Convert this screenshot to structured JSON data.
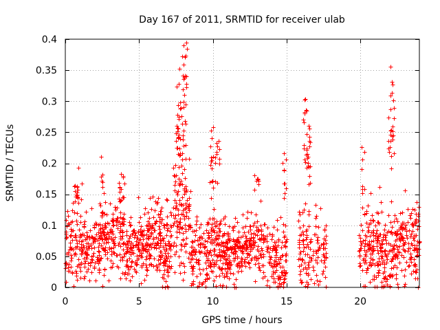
{
  "chart_data": {
    "type": "scatter",
    "title": "Day 167 of 2011, SRMTID for receiver ulab",
    "xlabel": "GPS time / hours",
    "ylabel": "SRMTID / TECUs",
    "xlim": [
      0,
      24
    ],
    "ylim": [
      0,
      0.4
    ],
    "xticks": [
      0,
      5,
      10,
      15,
      20
    ],
    "xtick_labels": [
      "0",
      "5",
      "10",
      "15",
      "20"
    ],
    "yticks": [
      0,
      0.05,
      0.1,
      0.15,
      0.2,
      0.25,
      0.3,
      0.35,
      0.4
    ],
    "ytick_labels": [
      "0",
      "0.05",
      "0.1",
      "0.15",
      "0.2",
      "0.25",
      "0.3",
      "0.35",
      "0.4"
    ],
    "grid": true,
    "marker": "plus",
    "series": [
      {
        "name": "SRMTID",
        "color": "#ff0000",
        "note": "Dense scatter of a few thousand points; clusters with values mostly 0-0.15 TECU, peaks near 8 h (~0.39), 10 h (~0.26), 16.3 h (~0.31) and 22.1 h (~0.36). Gap with no data from about 17.7 h to 19.9 h.",
        "clusters": [
          {
            "x_start": 0.0,
            "x_end": 1.3,
            "center": 0.07,
            "spread": 0.04,
            "count": 110
          },
          {
            "x_start": 0.6,
            "x_end": 0.9,
            "center": 0.15,
            "spread": 0.02,
            "count": 18
          },
          {
            "x_start": 1.3,
            "x_end": 2.3,
            "center": 0.065,
            "spread": 0.035,
            "count": 80
          },
          {
            "x_start": 2.3,
            "x_end": 3.2,
            "center": 0.085,
            "spread": 0.04,
            "count": 90
          },
          {
            "x_start": 2.4,
            "x_end": 2.6,
            "center": 0.175,
            "spread": 0.015,
            "count": 6
          },
          {
            "x_start": 3.2,
            "x_end": 4.0,
            "center": 0.09,
            "spread": 0.04,
            "count": 80
          },
          {
            "x_start": 3.6,
            "x_end": 4.0,
            "center": 0.155,
            "spread": 0.02,
            "count": 12
          },
          {
            "x_start": 4.0,
            "x_end": 5.5,
            "center": 0.06,
            "spread": 0.035,
            "count": 140
          },
          {
            "x_start": 5.5,
            "x_end": 6.5,
            "center": 0.075,
            "spread": 0.04,
            "count": 100
          },
          {
            "x_start": 6.4,
            "x_end": 7.2,
            "center": 0.06,
            "spread": 0.045,
            "count": 90
          },
          {
            "x_start": 7.3,
            "x_end": 8.5,
            "center": 0.1,
            "spread": 0.06,
            "count": 120
          },
          {
            "x_start": 7.5,
            "x_end": 8.2,
            "center": 0.25,
            "spread": 0.06,
            "count": 50
          },
          {
            "x_start": 7.9,
            "x_end": 8.3,
            "center": 0.34,
            "spread": 0.035,
            "count": 14
          },
          {
            "x_start": 8.5,
            "x_end": 9.7,
            "center": 0.05,
            "spread": 0.04,
            "count": 100
          },
          {
            "x_start": 9.7,
            "x_end": 10.5,
            "center": 0.07,
            "spread": 0.04,
            "count": 90
          },
          {
            "x_start": 9.8,
            "x_end": 10.5,
            "center": 0.21,
            "spread": 0.04,
            "count": 25
          },
          {
            "x_start": 10.5,
            "x_end": 12.0,
            "center": 0.055,
            "spread": 0.03,
            "count": 160
          },
          {
            "x_start": 12.0,
            "x_end": 13.5,
            "center": 0.07,
            "spread": 0.035,
            "count": 130
          },
          {
            "x_start": 12.8,
            "x_end": 13.1,
            "center": 0.18,
            "spread": 0.015,
            "count": 8
          },
          {
            "x_start": 13.5,
            "x_end": 15.0,
            "center": 0.05,
            "spread": 0.04,
            "count": 120
          },
          {
            "x_start": 14.7,
            "x_end": 15.0,
            "center": 0.18,
            "spread": 0.03,
            "count": 10
          },
          {
            "x_start": 15.8,
            "x_end": 17.7,
            "center": 0.06,
            "spread": 0.045,
            "count": 130
          },
          {
            "x_start": 16.1,
            "x_end": 16.6,
            "center": 0.22,
            "spread": 0.05,
            "count": 30
          },
          {
            "x_start": 16.2,
            "x_end": 16.4,
            "center": 0.3,
            "spread": 0.015,
            "count": 5
          },
          {
            "x_start": 19.9,
            "x_end": 21.2,
            "center": 0.07,
            "spread": 0.04,
            "count": 120
          },
          {
            "x_start": 20.1,
            "x_end": 20.3,
            "center": 0.2,
            "spread": 0.04,
            "count": 8
          },
          {
            "x_start": 21.2,
            "x_end": 22.5,
            "center": 0.06,
            "spread": 0.04,
            "count": 130
          },
          {
            "x_start": 21.9,
            "x_end": 22.3,
            "center": 0.25,
            "spread": 0.05,
            "count": 22
          },
          {
            "x_start": 22.0,
            "x_end": 22.2,
            "center": 0.33,
            "spread": 0.025,
            "count": 4
          },
          {
            "x_start": 22.5,
            "x_end": 24.0,
            "center": 0.07,
            "spread": 0.04,
            "count": 140
          }
        ]
      }
    ]
  }
}
